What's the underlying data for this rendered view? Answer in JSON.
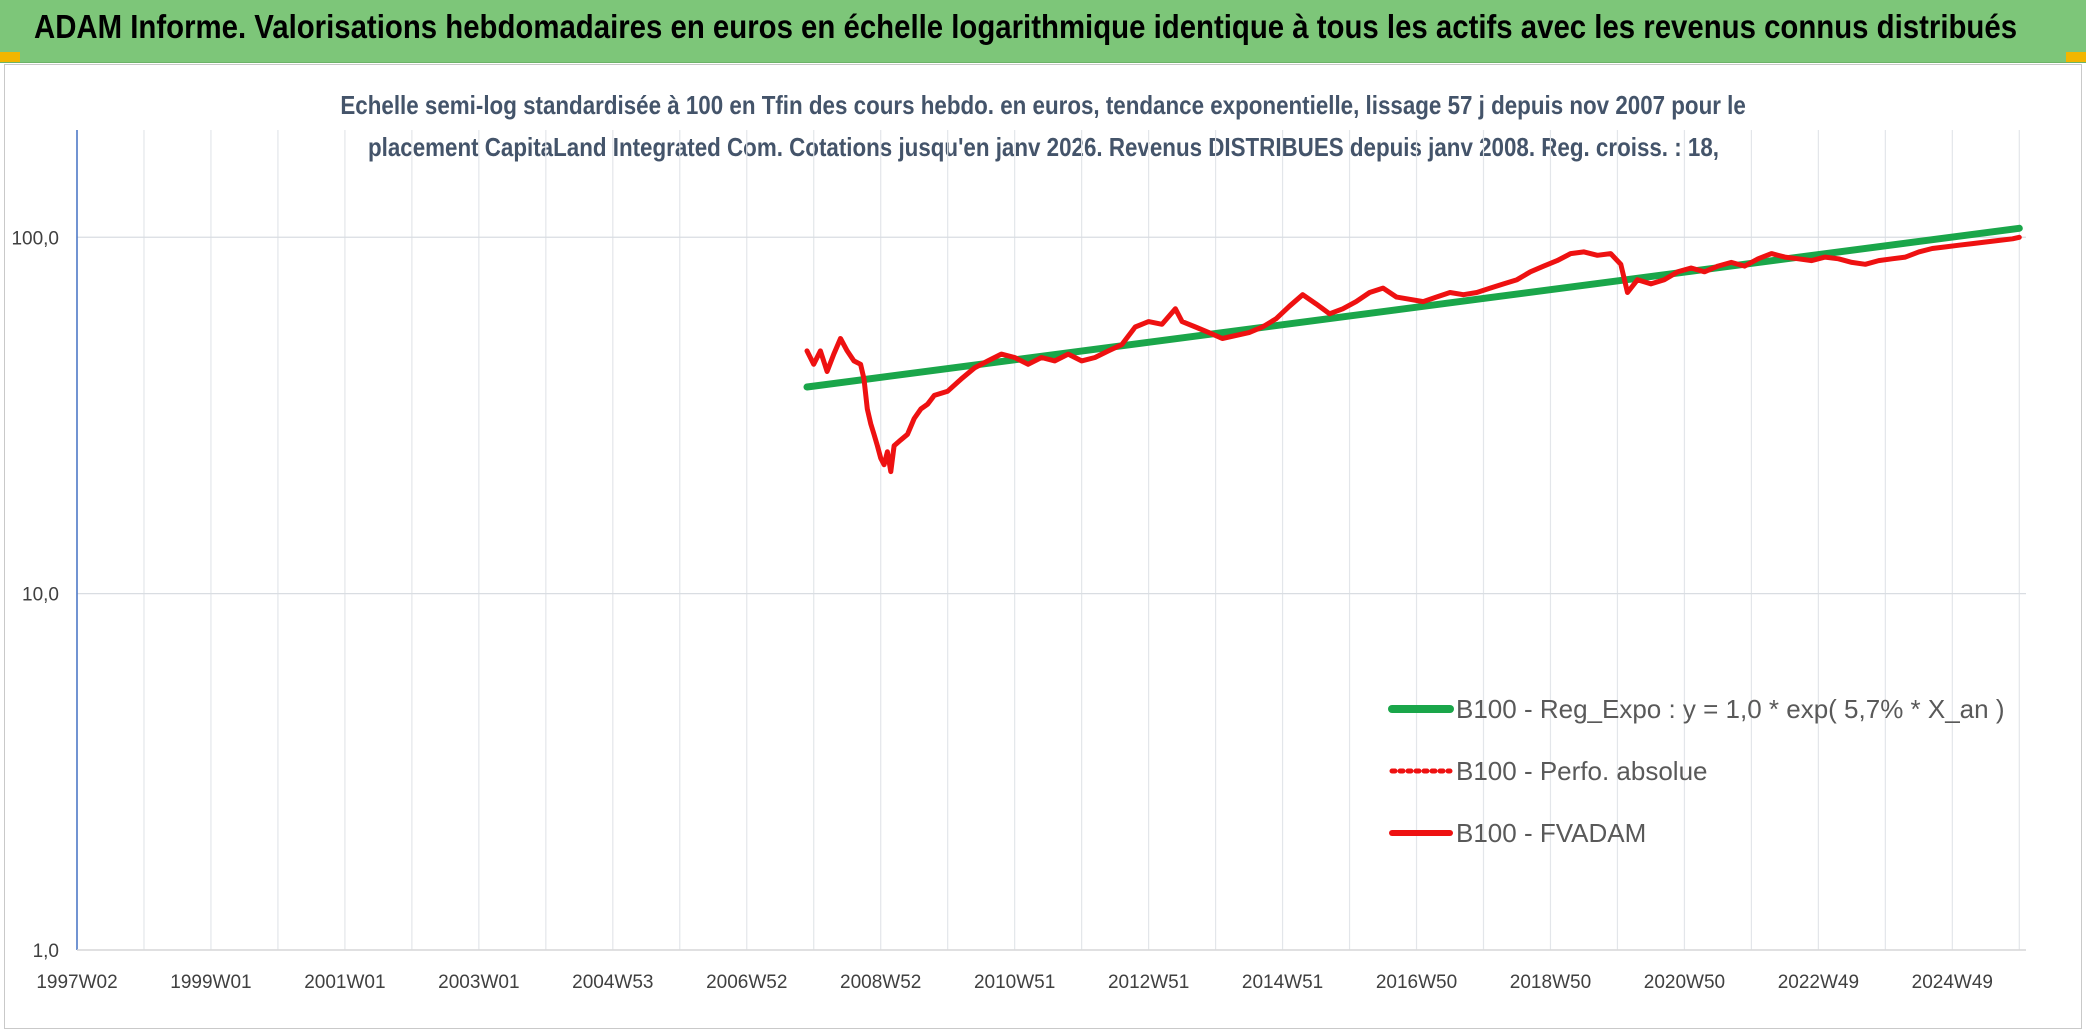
{
  "header": {
    "title": "ADAM Informe. Valorisations hebdomadaires en euros en échelle logarithmique identique à tous les actifs avec les revenus connus distribués"
  },
  "colors": {
    "header_bg": "#7dc679",
    "trend": "#1aa64a",
    "fvadam": "#ee1111",
    "perfo": "#ee1111",
    "title_text": "#44546a"
  },
  "chart_data": {
    "type": "line",
    "title_line1": "Echelle semi-log standardisée à 100 en Tfin des cours hebdo. en euros, tendance exponentielle, lissage 57 j depuis nov 2007 pour le",
    "title_line2": "placement CapitaLand Integrated Com. Cotations jusqu'en janv 2026. Revenus DISTRIBUES depuis janv 2008. Reg. croiss. : 18,",
    "y_scale": "log",
    "ylim": [
      1,
      200
    ],
    "xlim": [
      1997.0,
      2026.1
    ],
    "y_ticks": [
      {
        "value": 100,
        "label": "100,0"
      },
      {
        "value": 10,
        "label": "10,0"
      },
      {
        "value": 1,
        "label": "1,0"
      }
    ],
    "x_ticks": [
      {
        "value": 1997.0,
        "label": "1997W02"
      },
      {
        "value": 1999.0,
        "label": "1999W01"
      },
      {
        "value": 2001.0,
        "label": "2001W01"
      },
      {
        "value": 2003.0,
        "label": "2003W01"
      },
      {
        "value": 2005.0,
        "label": "2004W53"
      },
      {
        "value": 2007.0,
        "label": "2006W52"
      },
      {
        "value": 2009.0,
        "label": "2008W52"
      },
      {
        "value": 2011.0,
        "label": "2010W51"
      },
      {
        "value": 2013.0,
        "label": "2012W51"
      },
      {
        "value": 2015.0,
        "label": "2014W51"
      },
      {
        "value": 2017.0,
        "label": "2016W50"
      },
      {
        "value": 2019.0,
        "label": "2018W50"
      },
      {
        "value": 2021.0,
        "label": "2020W50"
      },
      {
        "value": 2023.0,
        "label": "2022W49"
      },
      {
        "value": 2025.0,
        "label": "2024W49"
      }
    ],
    "grid": true,
    "legend_position": "bottom-right",
    "series": [
      {
        "name": "B100 - Reg_Expo : y = 1,0 * exp( 5,7% *  X_an )",
        "style": "solid",
        "points": [
          [
            2007.9,
            38
          ],
          [
            2026.0,
            106
          ]
        ]
      },
      {
        "name": "B100 - Perfo. absolue",
        "style": "dotted",
        "points": []
      },
      {
        "name": "B100 - FVADAM",
        "style": "solid",
        "points": [
          [
            2007.9,
            48
          ],
          [
            2008.0,
            44
          ],
          [
            2008.1,
            48
          ],
          [
            2008.2,
            42
          ],
          [
            2008.3,
            47
          ],
          [
            2008.4,
            52
          ],
          [
            2008.5,
            48
          ],
          [
            2008.6,
            45
          ],
          [
            2008.7,
            44
          ],
          [
            2008.75,
            40
          ],
          [
            2008.8,
            33
          ],
          [
            2008.85,
            30
          ],
          [
            2008.9,
            28
          ],
          [
            2008.95,
            26
          ],
          [
            2009.0,
            24
          ],
          [
            2009.05,
            23
          ],
          [
            2009.1,
            25
          ],
          [
            2009.15,
            22
          ],
          [
            2009.2,
            26
          ],
          [
            2009.3,
            27
          ],
          [
            2009.4,
            28
          ],
          [
            2009.5,
            31
          ],
          [
            2009.6,
            33
          ],
          [
            2009.7,
            34
          ],
          [
            2009.8,
            36
          ],
          [
            2010.0,
            37
          ],
          [
            2010.2,
            40
          ],
          [
            2010.4,
            43
          ],
          [
            2010.6,
            45
          ],
          [
            2010.8,
            47
          ],
          [
            2011.0,
            46
          ],
          [
            2011.2,
            44
          ],
          [
            2011.4,
            46
          ],
          [
            2011.6,
            45
          ],
          [
            2011.8,
            47
          ],
          [
            2012.0,
            45
          ],
          [
            2012.2,
            46
          ],
          [
            2012.4,
            48
          ],
          [
            2012.6,
            50
          ],
          [
            2012.8,
            56
          ],
          [
            2013.0,
            58
          ],
          [
            2013.2,
            57
          ],
          [
            2013.4,
            63
          ],
          [
            2013.5,
            58
          ],
          [
            2013.7,
            56
          ],
          [
            2013.9,
            54
          ],
          [
            2014.1,
            52
          ],
          [
            2014.3,
            53
          ],
          [
            2014.5,
            54
          ],
          [
            2014.7,
            56
          ],
          [
            2014.9,
            59
          ],
          [
            2015.1,
            64
          ],
          [
            2015.3,
            69
          ],
          [
            2015.5,
            65
          ],
          [
            2015.7,
            61
          ],
          [
            2015.9,
            63
          ],
          [
            2016.1,
            66
          ],
          [
            2016.3,
            70
          ],
          [
            2016.5,
            72
          ],
          [
            2016.7,
            68
          ],
          [
            2016.9,
            67
          ],
          [
            2017.1,
            66
          ],
          [
            2017.3,
            68
          ],
          [
            2017.5,
            70
          ],
          [
            2017.7,
            69
          ],
          [
            2017.9,
            70
          ],
          [
            2018.1,
            72
          ],
          [
            2018.3,
            74
          ],
          [
            2018.5,
            76
          ],
          [
            2018.7,
            80
          ],
          [
            2018.9,
            83
          ],
          [
            2019.1,
            86
          ],
          [
            2019.3,
            90
          ],
          [
            2019.5,
            91
          ],
          [
            2019.7,
            89
          ],
          [
            2019.9,
            90
          ],
          [
            2020.05,
            84
          ],
          [
            2020.15,
            70
          ],
          [
            2020.3,
            76
          ],
          [
            2020.5,
            74
          ],
          [
            2020.7,
            76
          ],
          [
            2020.9,
            80
          ],
          [
            2021.1,
            82
          ],
          [
            2021.3,
            80
          ],
          [
            2021.5,
            83
          ],
          [
            2021.7,
            85
          ],
          [
            2021.9,
            83
          ],
          [
            2022.1,
            87
          ],
          [
            2022.3,
            90
          ],
          [
            2022.5,
            88
          ],
          [
            2022.7,
            87
          ],
          [
            2022.9,
            86
          ],
          [
            2023.1,
            88
          ],
          [
            2023.3,
            87
          ],
          [
            2023.5,
            85
          ],
          [
            2023.7,
            84
          ],
          [
            2023.9,
            86
          ],
          [
            2024.1,
            87
          ],
          [
            2024.3,
            88
          ],
          [
            2024.5,
            91
          ],
          [
            2024.7,
            93
          ],
          [
            2024.9,
            94
          ],
          [
            2025.1,
            95
          ],
          [
            2025.3,
            96
          ],
          [
            2025.5,
            97
          ],
          [
            2025.7,
            98
          ],
          [
            2025.9,
            99
          ],
          [
            2026.0,
            100
          ]
        ]
      }
    ]
  }
}
